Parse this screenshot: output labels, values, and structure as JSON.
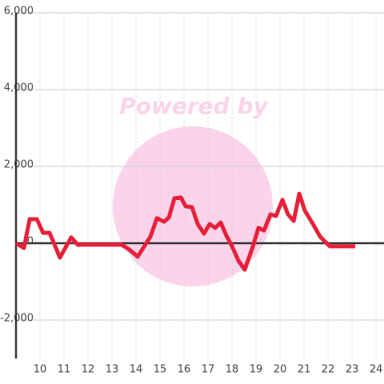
{
  "chart_data": {
    "type": "line",
    "watermark": "Powered by",
    "x": [
      9,
      9.33,
      9.57,
      9.87,
      10.13,
      10.4,
      10.83,
      11.3,
      11.57,
      13.4,
      13.73,
      14.07,
      14.6,
      14.87,
      15.17,
      15.37,
      15.6,
      15.87,
      16.07,
      16.33,
      16.57,
      16.83,
      17.07,
      17.3,
      17.53,
      17.77,
      18,
      18.27,
      18.53,
      18.87,
      19.1,
      19.33,
      19.6,
      19.83,
      20.1,
      20.33,
      20.57,
      20.8,
      21.03,
      21.37,
      21.67,
      22.07,
      23.13
    ],
    "series": [
      {
        "color": "#e8213a",
        "values": [
          0,
          -125,
          625,
          625,
          270,
          270,
          -375,
          150,
          -40,
          -40,
          -170,
          -350,
          170,
          650,
          560,
          670,
          1170,
          1190,
          960,
          940,
          500,
          250,
          500,
          400,
          540,
          190,
          -80,
          -460,
          -690,
          -80,
          400,
          330,
          750,
          710,
          1130,
          750,
          580,
          1290,
          850,
          500,
          170,
          -80,
          -80
        ]
      }
    ],
    "xlim": [
      9,
      24.33
    ],
    "xticks": [
      10,
      11,
      12,
      13,
      14,
      15,
      16,
      17,
      18,
      19,
      20,
      21,
      22,
      23,
      24
    ],
    "ylim": [
      -3000,
      6000
    ],
    "yticks": [
      {
        "value": -2000,
        "label": "-2,000"
      },
      0,
      {
        "value": 2000,
        "label": "2,000"
      },
      {
        "value": 4000,
        "label": "4,000"
      },
      {
        "value": 6000,
        "label": "6,000"
      }
    ],
    "grid": true
  }
}
